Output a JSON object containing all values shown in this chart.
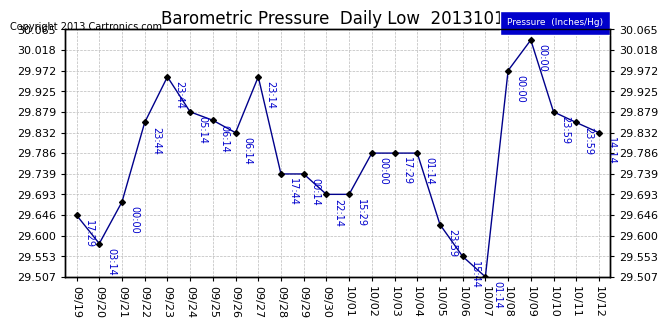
{
  "title": "Barometric Pressure  Daily Low  20131013",
  "copyright": "Copyright 2013 Cartronics.com",
  "ylabel": "Pressure  (Inches/Hg)",
  "ylim": [
    29.507,
    30.065
  ],
  "yticks": [
    29.507,
    29.553,
    29.6,
    29.646,
    29.693,
    29.739,
    29.786,
    29.832,
    29.879,
    29.925,
    29.972,
    30.018,
    30.065
  ],
  "background_color": "#ffffff",
  "plot_bg_color": "#ffffff",
  "grid_color": "#bbbbbb",
  "line_color": "#00008B",
  "point_color": "#000000",
  "label_color": "#0000cc",
  "dates": [
    "09/19",
    "09/20",
    "09/21",
    "09/22",
    "09/23",
    "09/24",
    "09/25",
    "09/26",
    "09/27",
    "09/28",
    "09/29",
    "09/30",
    "10/01",
    "10/02",
    "10/03",
    "10/04",
    "10/05",
    "10/06",
    "10/07",
    "10/08",
    "10/09",
    "10/10",
    "10/11",
    "10/12"
  ],
  "values": [
    29.646,
    29.582,
    29.676,
    29.855,
    29.958,
    29.879,
    29.86,
    29.832,
    29.958,
    29.739,
    29.739,
    29.693,
    29.693,
    29.786,
    29.786,
    29.786,
    29.625,
    29.553,
    29.507,
    29.972,
    30.041,
    29.879,
    29.855,
    29.832
  ],
  "time_labels": [
    "17:29",
    "03:14",
    "00:00",
    "23:44",
    "23:44",
    "05:14",
    "06:14",
    "06:14",
    "23:14",
    "17:44",
    "00:14",
    "22:14",
    "15:29",
    "00:00",
    "17:29",
    "01:14",
    "23:59",
    "15:44",
    "01:14",
    "00:00",
    "00:00",
    "23:59",
    "23:59",
    "14:14"
  ],
  "legend_box_color": "#0000cc",
  "legend_text_color": "#ffffff",
  "title_fontsize": 12,
  "axis_fontsize": 8,
  "label_fontsize": 7,
  "copyright_fontsize": 7
}
